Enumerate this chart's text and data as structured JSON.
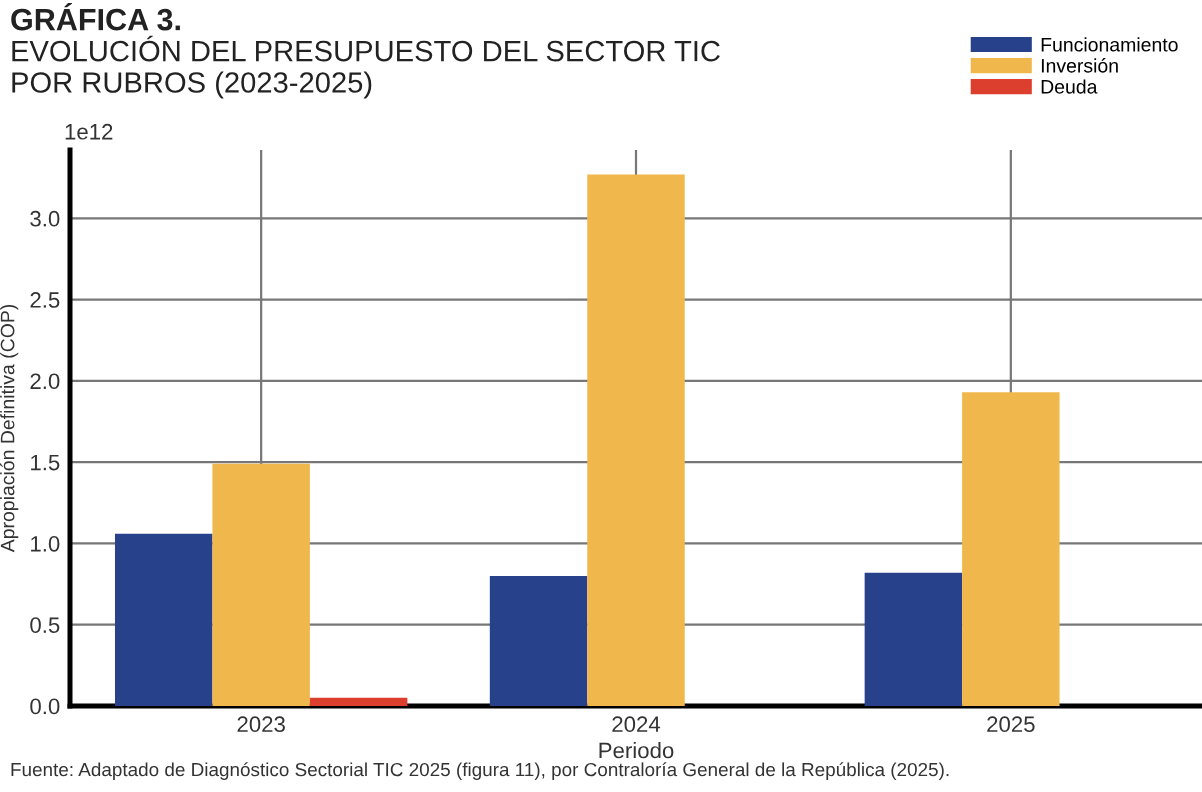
{
  "chart_data": {
    "type": "bar",
    "title": "GRÁFICA 3.",
    "subtitle": "EVOLUCIÓN DEL PRESUPUESTO DEL SECTOR TIC\nPOR RUBROS (2023-2025)",
    "xlabel": "Periodo",
    "ylabel": "Apropiación Definitiva (COP)",
    "categories": [
      "2023",
      "2024",
      "2025"
    ],
    "series": [
      {
        "name": "Funcionamiento",
        "color": "#27418a",
        "values": [
          1.06,
          0.8,
          0.82
        ]
      },
      {
        "name": "Inversión",
        "color": "#f0b84c",
        "values": [
          1.49,
          3.27,
          1.93
        ]
      },
      {
        "name": "Deuda",
        "color": "#dc3f2e",
        "values": [
          0.05,
          null,
          null
        ]
      }
    ],
    "ylim": [
      0,
      3.42
    ],
    "yticks": [
      {
        "value": 0,
        "label": "0.0"
      },
      {
        "value": 0.5,
        "label": "0.5"
      },
      {
        "value": 1,
        "label": "1.0"
      },
      {
        "value": 1.5,
        "label": "1.5"
      },
      {
        "value": 2,
        "label": "2.0"
      },
      {
        "value": 2.5,
        "label": "2.5"
      },
      {
        "value": 3,
        "label": "3.0"
      }
    ],
    "annotations": [
      "1e12",
      "Fuente: Adaptado de Diagnóstico Sectorial TIC 2025 (figura 11), por Contraloría General de la República (2025)."
    ],
    "grid": true,
    "legend": "top right"
  }
}
